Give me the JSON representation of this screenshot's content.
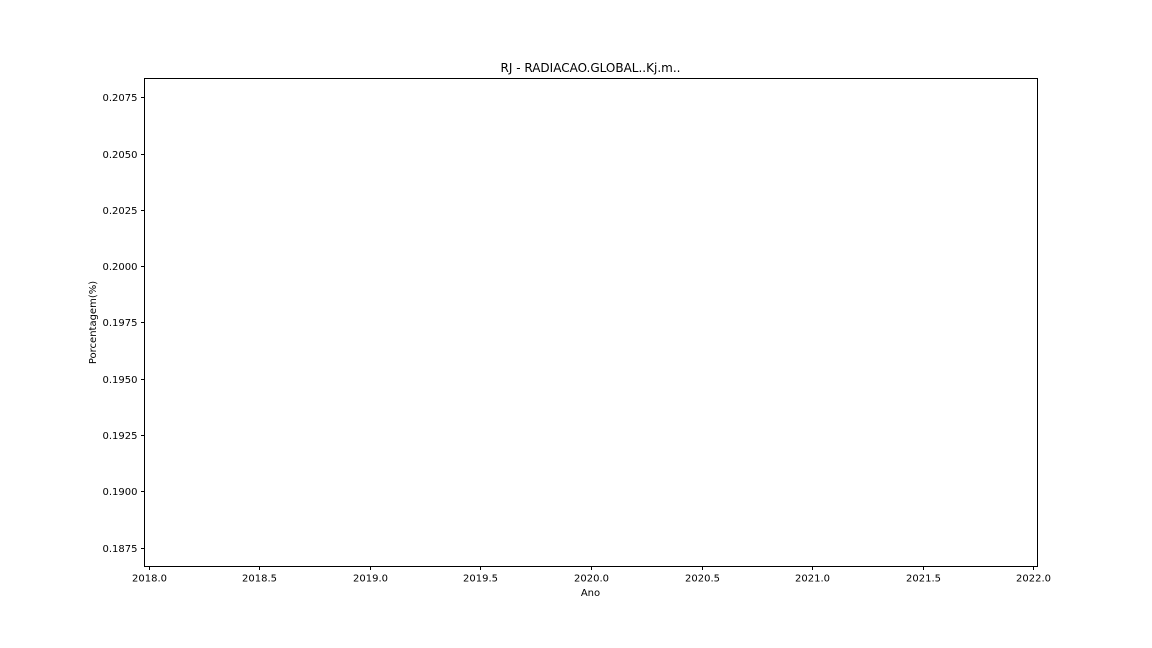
{
  "chart_data": {
    "type": "line",
    "title": "RJ - RADIACAO.GLOBAL..Kj.m..",
    "xlabel": "Ano",
    "ylabel": "Porcentagem(%)",
    "xlim": [
      2017.98,
      2022.02
    ],
    "ylim": [
      0.18666,
      0.20834
    ],
    "x_ticks": [
      2018.0,
      2018.5,
      2019.0,
      2019.5,
      2020.0,
      2020.5,
      2021.0,
      2021.5,
      2022.0
    ],
    "x_tick_labels": [
      "2018.0",
      "2018.5",
      "2019.0",
      "2019.5",
      "2020.0",
      "2020.5",
      "2021.0",
      "2021.5",
      "2022.0"
    ],
    "y_ticks": [
      0.1875,
      0.19,
      0.1925,
      0.195,
      0.1975,
      0.2,
      0.2025,
      0.205,
      0.2075
    ],
    "y_tick_labels": [
      "0.1875",
      "0.1900",
      "0.1925",
      "0.1950",
      "0.1975",
      "0.2000",
      "0.2025",
      "0.2050",
      "0.2075"
    ],
    "series": [],
    "grid": false,
    "colors": {
      "axes": "#000000",
      "background": "#ffffff"
    }
  }
}
